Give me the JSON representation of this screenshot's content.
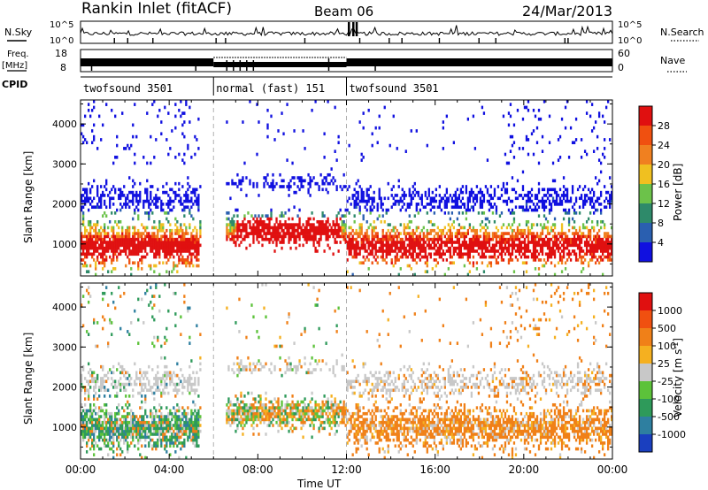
{
  "header": {
    "station": "Rankin Inlet (fitACF)",
    "beam": "Beam 06",
    "date": "24/Mar/2013"
  },
  "panels": {
    "nsky_label": "N.Sky",
    "nsearch_label": "N.Search",
    "freq_label_1": "Freq.",
    "freq_label_2": "[MHz]",
    "nave_label": "Nave",
    "cpid_label": "CPID",
    "nsky_tick_top": "10^5",
    "nsky_tick_bottom": "10^0",
    "freq_ticks": [
      "18",
      "8"
    ],
    "nave_ticks": [
      "60",
      "0"
    ]
  },
  "cpid_modes": [
    {
      "label": "twofsound 3501",
      "start": 0,
      "end": 6.0
    },
    {
      "label": "normal (fast) 151",
      "start": 6.0,
      "end": 12.0
    },
    {
      "label": "twofsound 3501",
      "start": 12.0,
      "end": 24.0
    }
  ],
  "chart_data": [
    {
      "type": "heatmap",
      "parameter": "Power",
      "ylabel": "Slant Range [km]",
      "xlabel": "Time UT",
      "xlim": [
        0,
        24
      ],
      "ylim": [
        200,
        4600
      ],
      "yticks": [
        1000,
        2000,
        3000,
        4000
      ],
      "colorbar_label": "Power [dB]",
      "colorbar_ticks": [
        4,
        8,
        12,
        16,
        20,
        24,
        28
      ],
      "colorbar_colors": [
        "#1010e0",
        "#2a5fb0",
        "#2e8a6a",
        "#6cc24a",
        "#f0c020",
        "#f08020",
        "#f05010",
        "#e01010"
      ]
    },
    {
      "type": "heatmap",
      "parameter": "Velocity",
      "ylabel": "Slant Range [km]",
      "xlabel": "Time UT",
      "xlim": [
        0,
        24
      ],
      "ylim": [
        200,
        4600
      ],
      "yticks": [
        1000,
        2000,
        3000,
        4000
      ],
      "xticks": [
        "00:00",
        "04:00",
        "08:00",
        "12:00",
        "16:00",
        "20:00",
        "00:00"
      ],
      "colorbar_label": "Velocity [m s^-1]",
      "colorbar_ticks": [
        1000,
        500,
        100,
        25,
        -25,
        -100,
        -500,
        -1000
      ],
      "colorbar_colors": [
        "#1a3fbf",
        "#2e7fa0",
        "#2e9a5a",
        "#5cc23a",
        "#c8c8c8",
        "#f5b020",
        "#f08018",
        "#f05010",
        "#e01010"
      ]
    }
  ],
  "axis": {
    "xlabel": "Time UT",
    "xticks": [
      "00:00",
      "04:00",
      "08:00",
      "12:00",
      "16:00",
      "20:00",
      "00:00"
    ]
  }
}
